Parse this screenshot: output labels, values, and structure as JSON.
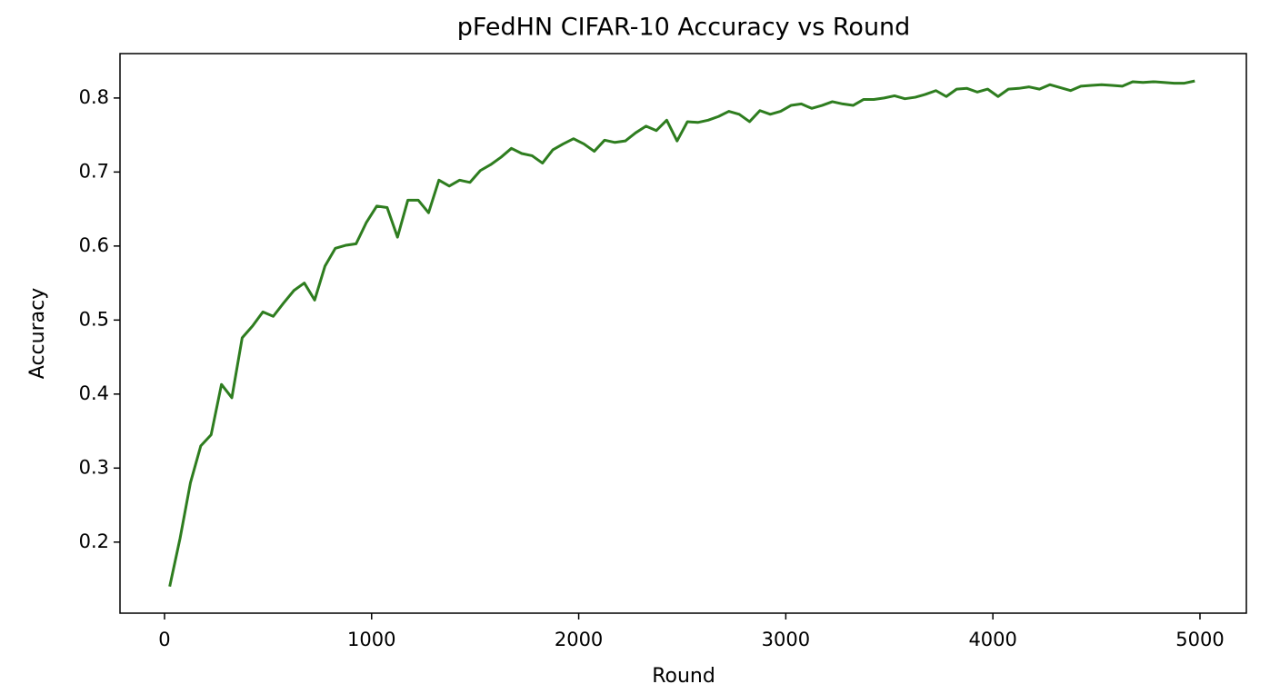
{
  "chart_data": {
    "type": "line",
    "title": "pFedHN CIFAR-10 Accuracy vs Round",
    "x_label": "Round",
    "y_label": "Accuracy",
    "x": [
      25,
      75,
      125,
      175,
      225,
      275,
      325,
      375,
      425,
      475,
      525,
      575,
      625,
      675,
      725,
      775,
      825,
      875,
      925,
      975,
      1025,
      1075,
      1125,
      1175,
      1225,
      1275,
      1325,
      1375,
      1425,
      1475,
      1525,
      1575,
      1625,
      1675,
      1725,
      1775,
      1825,
      1875,
      1925,
      1975,
      2025,
      2075,
      2125,
      2175,
      2225,
      2275,
      2325,
      2375,
      2425,
      2475,
      2525,
      2575,
      2625,
      2675,
      2725,
      2775,
      2825,
      2875,
      2925,
      2975,
      3025,
      3075,
      3125,
      3175,
      3225,
      3275,
      3325,
      3375,
      3425,
      3475,
      3525,
      3575,
      3625,
      3675,
      3725,
      3775,
      3825,
      3875,
      3925,
      3975,
      4025,
      4075,
      4125,
      4175,
      4225,
      4275,
      4325,
      4375,
      4425,
      4475,
      4525,
      4575,
      4625,
      4675,
      4725,
      4775,
      4825,
      4875,
      4925,
      4975
    ],
    "series": [
      {
        "name": "Accuracy",
        "color": "#2e7d1f",
        "values": [
          0.14,
          0.205,
          0.28,
          0.33,
          0.345,
          0.413,
          0.395,
          0.476,
          0.492,
          0.511,
          0.505,
          0.523,
          0.54,
          0.55,
          0.527,
          0.573,
          0.597,
          0.601,
          0.603,
          0.632,
          0.654,
          0.652,
          0.612,
          0.662,
          0.662,
          0.645,
          0.689,
          0.681,
          0.689,
          0.686,
          0.702,
          0.71,
          0.72,
          0.732,
          0.725,
          0.722,
          0.712,
          0.73,
          0.738,
          0.745,
          0.738,
          0.728,
          0.743,
          0.74,
          0.742,
          0.753,
          0.762,
          0.756,
          0.77,
          0.742,
          0.768,
          0.767,
          0.77,
          0.775,
          0.782,
          0.778,
          0.768,
          0.783,
          0.778,
          0.782,
          0.79,
          0.792,
          0.786,
          0.79,
          0.795,
          0.792,
          0.79,
          0.798,
          0.798,
          0.8,
          0.803,
          0.799,
          0.801,
          0.805,
          0.81,
          0.802,
          0.812,
          0.813,
          0.808,
          0.812,
          0.802,
          0.812,
          0.813,
          0.815,
          0.812,
          0.818,
          0.814,
          0.81,
          0.816,
          0.817,
          0.818,
          0.817,
          0.816,
          0.822,
          0.821,
          0.822,
          0.821,
          0.82,
          0.82,
          0.823
        ]
      }
    ],
    "xlim": [
      -215,
      5224
    ],
    "ylim": [
      0.104,
      0.86
    ],
    "xticks": [
      0,
      1000,
      2000,
      3000,
      4000,
      5000
    ],
    "yticks": [
      0.2,
      0.3,
      0.4,
      0.5,
      0.6,
      0.7,
      0.8
    ],
    "grid": false
  }
}
